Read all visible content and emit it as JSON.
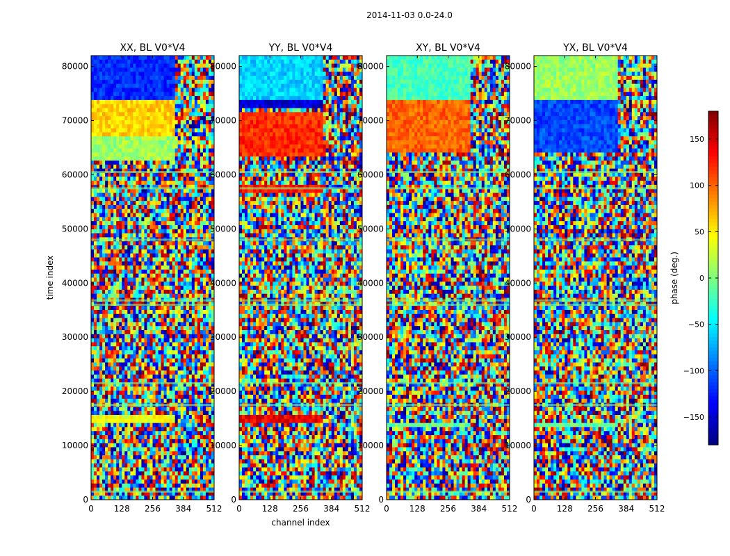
{
  "figure": {
    "suptitle": "2014-11-03 0.0-24.0"
  },
  "colors": {
    "colormap_jet": [
      "#00007f",
      "#0000ff",
      "#007fff",
      "#00ffff",
      "#7fff7f",
      "#ffff00",
      "#ff7f00",
      "#ff0000",
      "#7f0000"
    ]
  },
  "chart_data": [
    {
      "type": "heatmap",
      "title": "XX, BL V0*V4",
      "xlabel": "",
      "ylabel": "time index",
      "xlim": [
        0,
        512
      ],
      "ylim": [
        0,
        82000
      ],
      "xticks": [
        0,
        128,
        256,
        384,
        512
      ],
      "yticks": [
        0,
        10000,
        20000,
        30000,
        40000,
        50000,
        60000,
        70000,
        80000
      ],
      "bands": [
        {
          "from": 74000,
          "to": 82000,
          "value": -120
        },
        {
          "from": 67000,
          "to": 73500,
          "value": 60
        },
        {
          "from": 62500,
          "to": 67000,
          "value": 10
        },
        {
          "from": 14000,
          "to": 15500,
          "value": 40
        }
      ]
    },
    {
      "type": "heatmap",
      "title": "YY, BL V0*V4",
      "xlabel": "channel index",
      "ylabel": "",
      "xlim": [
        0,
        512
      ],
      "ylim": [
        0,
        82000
      ],
      "xticks": [
        0,
        128,
        256,
        384,
        512
      ],
      "yticks": [
        0,
        10000,
        20000,
        30000,
        40000,
        50000,
        60000,
        70000,
        80000
      ],
      "bands": [
        {
          "from": 74000,
          "to": 82000,
          "value": -60
        },
        {
          "from": 72000,
          "to": 73500,
          "value": -150
        },
        {
          "from": 63000,
          "to": 71500,
          "value": 120
        },
        {
          "from": 57000,
          "to": 58000,
          "value": 130
        },
        {
          "from": 14000,
          "to": 15500,
          "value": 140
        }
      ]
    },
    {
      "type": "heatmap",
      "title": "XY, BL V0*V4",
      "xlabel": "",
      "ylabel": "",
      "xlim": [
        0,
        512
      ],
      "ylim": [
        0,
        82000
      ],
      "xticks": [
        0,
        128,
        256,
        384,
        512
      ],
      "yticks": [
        0,
        10000,
        20000,
        30000,
        40000,
        50000,
        60000,
        70000,
        80000
      ],
      "bands": [
        {
          "from": 74000,
          "to": 82000,
          "value": -20
        },
        {
          "from": 64000,
          "to": 73500,
          "value": 100
        },
        {
          "from": 13500,
          "to": 14500,
          "value": -10
        }
      ]
    },
    {
      "type": "heatmap",
      "title": "YX, BL V0*V4",
      "xlabel": "",
      "ylabel": "",
      "xlim": [
        0,
        512
      ],
      "ylim": [
        0,
        82000
      ],
      "xticks": [
        0,
        128,
        256,
        384,
        512
      ],
      "yticks": [
        0,
        10000,
        20000,
        30000,
        40000,
        50000,
        60000,
        70000,
        80000
      ],
      "bands": [
        {
          "from": 74000,
          "to": 82000,
          "value": 10
        },
        {
          "from": 64000,
          "to": 73500,
          "value": -110
        },
        {
          "from": 13500,
          "to": 14500,
          "value": -10
        }
      ]
    }
  ],
  "colorbar": {
    "label": "phase (deg.)",
    "range": [
      -180,
      180
    ],
    "ticks": [
      -150,
      -100,
      -50,
      0,
      50,
      100,
      150
    ],
    "tick_labels": [
      "−150",
      "−100",
      "−50",
      "0",
      "50",
      "100",
      "150"
    ]
  }
}
